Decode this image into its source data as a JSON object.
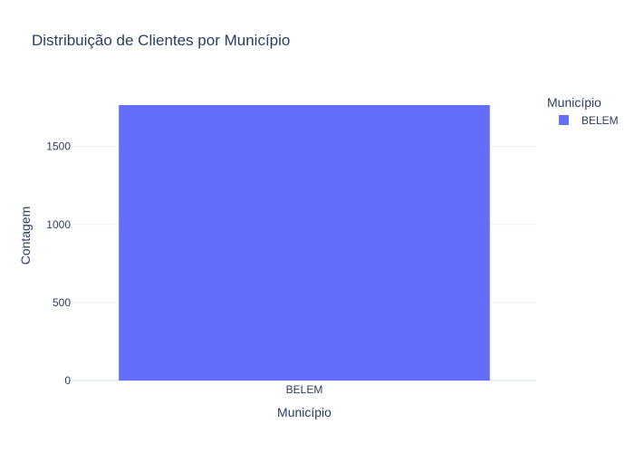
{
  "chart_data": {
    "type": "bar",
    "title": "Distribuição de Clientes por Município",
    "xlabel": "Município",
    "ylabel": "Contagem",
    "categories": [
      "BELEM"
    ],
    "series": [
      {
        "name": "BELEM",
        "values": [
          1765
        ],
        "color": "#636efa"
      }
    ],
    "ylim": [
      0,
      1765
    ],
    "yticks": [
      0,
      500,
      1000,
      1500
    ],
    "grid": true,
    "legend": {
      "title": "Município",
      "placement": "top-right"
    },
    "colors": {
      "text": "#2a3f5f",
      "grid": "#ebf0f8",
      "zeroline": "#ebf0f8"
    }
  }
}
